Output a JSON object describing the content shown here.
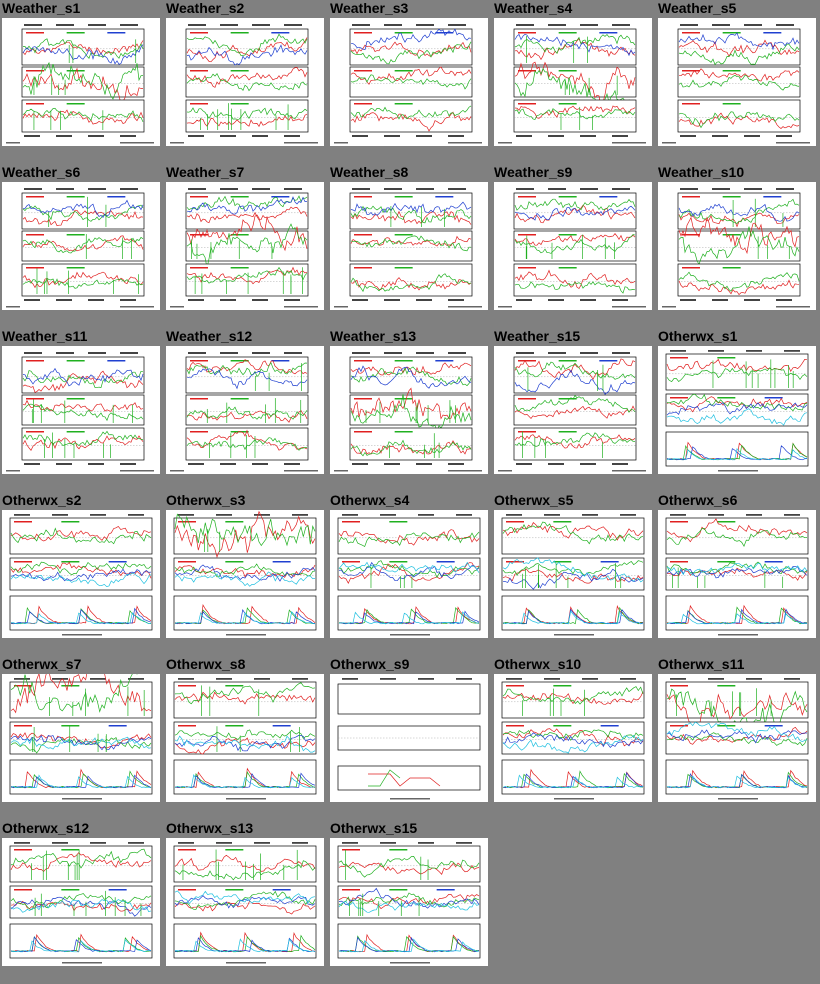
{
  "thumbnails": [
    {
      "label": "Weather_s1",
      "kind": "weather"
    },
    {
      "label": "Weather_s2",
      "kind": "weather"
    },
    {
      "label": "Weather_s3",
      "kind": "weather"
    },
    {
      "label": "Weather_s4",
      "kind": "weather"
    },
    {
      "label": "Weather_s5",
      "kind": "weather"
    },
    {
      "label": "Weather_s6",
      "kind": "weather"
    },
    {
      "label": "Weather_s7",
      "kind": "weather"
    },
    {
      "label": "Weather_s8",
      "kind": "weather"
    },
    {
      "label": "Weather_s9",
      "kind": "weather"
    },
    {
      "label": "Weather_s10",
      "kind": "weather"
    },
    {
      "label": "Weather_s11",
      "kind": "weather"
    },
    {
      "label": "Weather_s12",
      "kind": "weather"
    },
    {
      "label": "Weather_s13",
      "kind": "weather"
    },
    {
      "label": "Weather_s15",
      "kind": "weather"
    },
    {
      "label": "Otherwx_s1",
      "kind": "otherwx"
    },
    {
      "label": "Otherwx_s2",
      "kind": "otherwx"
    },
    {
      "label": "Otherwx_s3",
      "kind": "otherwx"
    },
    {
      "label": "Otherwx_s4",
      "kind": "otherwx"
    },
    {
      "label": "Otherwx_s5",
      "kind": "otherwx"
    },
    {
      "label": "Otherwx_s6",
      "kind": "otherwx"
    },
    {
      "label": "Otherwx_s7",
      "kind": "otherwx"
    },
    {
      "label": "Otherwx_s8",
      "kind": "otherwx"
    },
    {
      "label": "Otherwx_s9",
      "kind": "otherwx"
    },
    {
      "label": "Otherwx_s10",
      "kind": "otherwx"
    },
    {
      "label": "Otherwx_s11",
      "kind": "otherwx"
    },
    {
      "label": "Otherwx_s12",
      "kind": "otherwx"
    },
    {
      "label": "Otherwx_s13",
      "kind": "otherwx"
    },
    {
      "label": "Otherwx_s15",
      "kind": "otherwx"
    }
  ],
  "colors": {
    "background": "#808080",
    "thumbnail_bg": "#ffffff",
    "label_text": "#000000",
    "series": [
      "#e02020",
      "#20b020",
      "#2040d0",
      "#20c0e0",
      "#e020e0",
      "#202020"
    ]
  }
}
